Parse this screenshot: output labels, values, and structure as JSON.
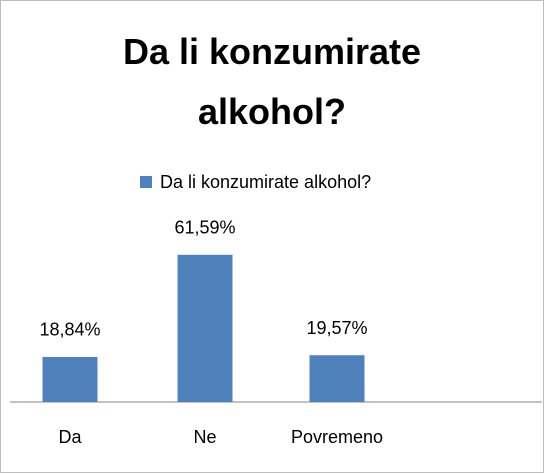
{
  "chart_data": {
    "type": "bar",
    "title": "Da li konzumirate alkohol?",
    "categories": [
      "Da",
      "Ne",
      "Povremeno"
    ],
    "series": [
      {
        "name": "Da li konzumirate alkohol?",
        "color": "#4f81bd",
        "values": [
          18.84,
          61.59,
          19.57
        ],
        "value_labels": [
          "18,84%",
          "61,59%",
          "19,57%"
        ]
      }
    ]
  }
}
